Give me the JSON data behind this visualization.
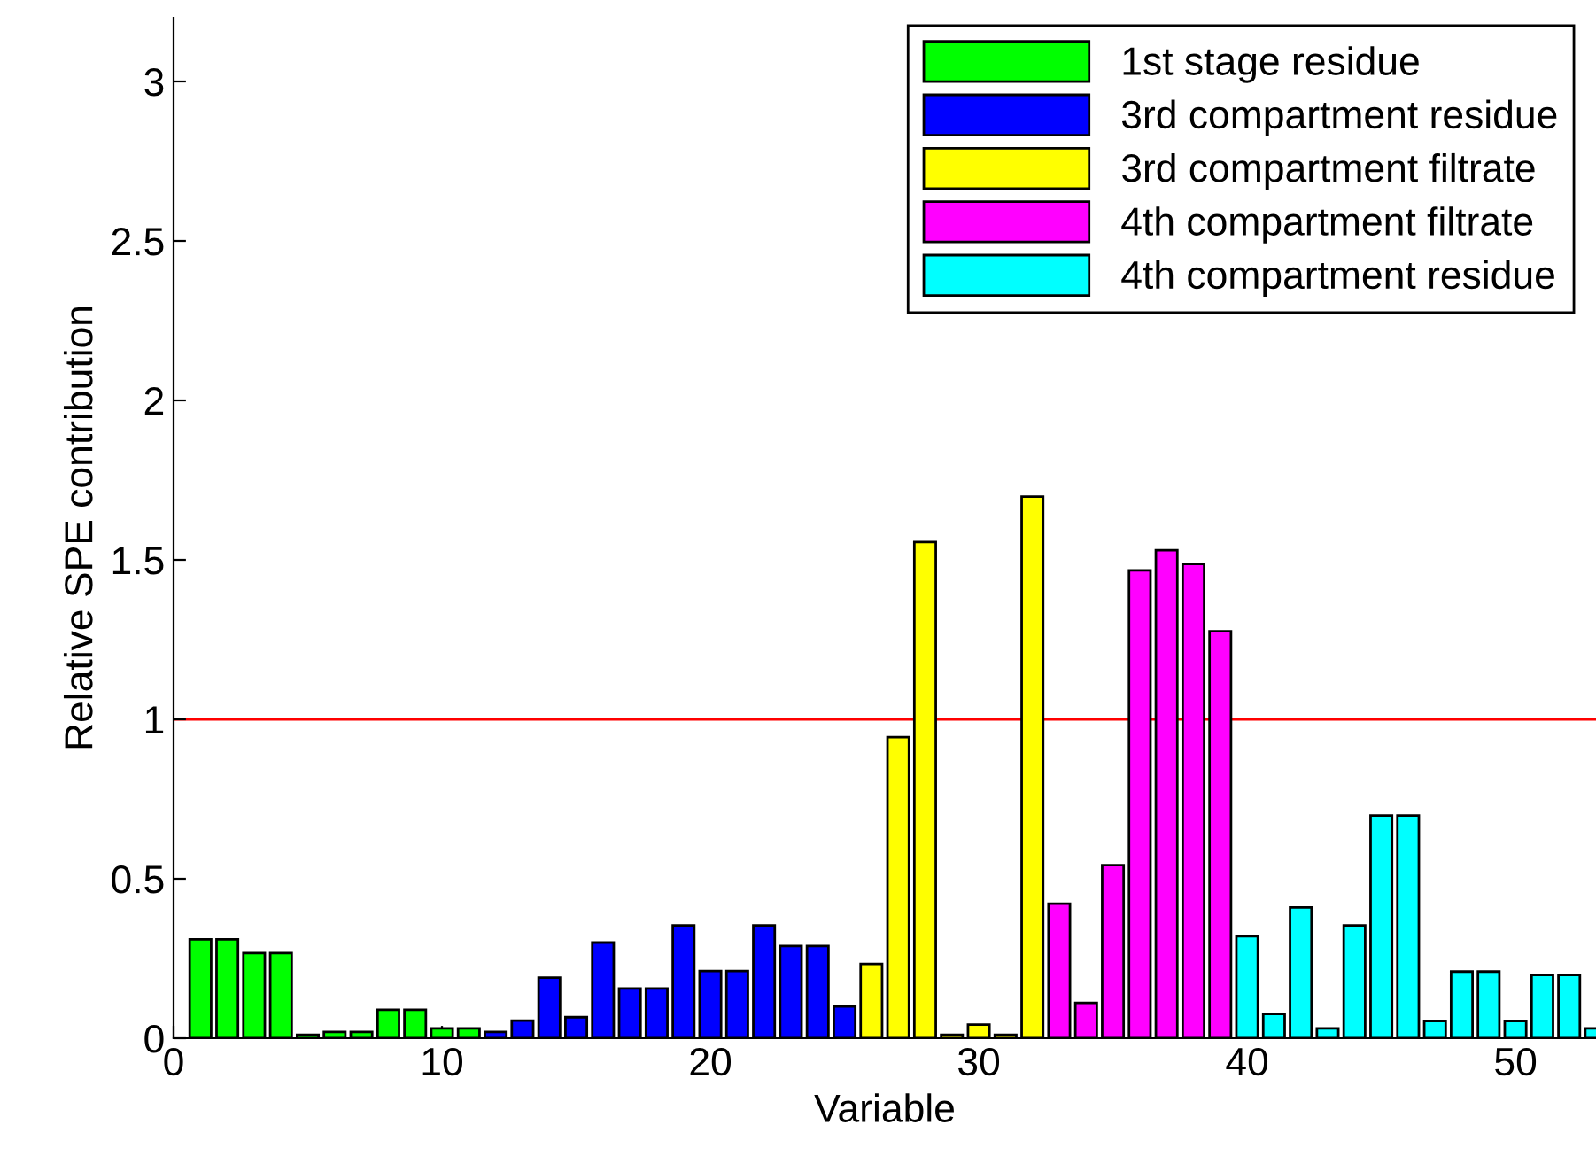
{
  "chart_data": {
    "type": "bar",
    "xlabel": "Variable",
    "ylabel": "Relative SPE contribution",
    "xlim": [
      0,
      53
    ],
    "ylim": [
      0,
      3.2
    ],
    "xticks": [
      0,
      10,
      20,
      30,
      40,
      50
    ],
    "yticks": [
      0,
      0.5,
      1,
      1.5,
      2,
      2.5,
      3
    ],
    "legend": "top right",
    "grid": false,
    "ref_lines": [
      {
        "axis": "y",
        "value": 1,
        "color": "#ff0000"
      }
    ],
    "series": [
      {
        "name": "1st stage residue",
        "color": "#00ff00",
        "x": [
          1,
          2,
          3,
          4,
          5,
          6,
          7,
          8,
          9,
          10,
          11
        ],
        "values": [
          0.31,
          0.31,
          0.267,
          0.267,
          0.011,
          0.02,
          0.02,
          0.089,
          0.089,
          0.031,
          0.031
        ]
      },
      {
        "name": "3rd compartment residue",
        "color": "#0000ff",
        "x": [
          12,
          13,
          14,
          15,
          16,
          17,
          18,
          19,
          20,
          21,
          22,
          23,
          24,
          25
        ],
        "values": [
          0.02,
          0.055,
          0.19,
          0.066,
          0.3,
          0.156,
          0.156,
          0.354,
          0.211,
          0.211,
          0.354,
          0.289,
          0.289,
          0.1
        ]
      },
      {
        "name": "3rd compartment filtrate",
        "color": "#ffff00",
        "x": [
          26,
          27,
          28,
          29,
          30,
          31,
          32
        ],
        "values": [
          0.233,
          0.944,
          1.556,
          0.011,
          0.043,
          0.011,
          1.698
        ]
      },
      {
        "name": "4th compartment filtrate",
        "color": "#ff00ff",
        "x": [
          33,
          34,
          35,
          36,
          37,
          38,
          39
        ],
        "values": [
          0.422,
          0.111,
          0.543,
          1.467,
          1.53,
          1.487,
          1.276
        ]
      },
      {
        "name": "4th compartment residue",
        "color": "#00ffff",
        "x": [
          40,
          41,
          42,
          43,
          44,
          45,
          46,
          47,
          48,
          49,
          50,
          51,
          52,
          53
        ],
        "values": [
          0.32,
          0.076,
          0.41,
          0.031,
          0.354,
          0.698,
          0.698,
          0.054,
          0.209,
          0.209,
          0.054,
          0.198,
          0.198,
          0.031
        ]
      }
    ]
  }
}
